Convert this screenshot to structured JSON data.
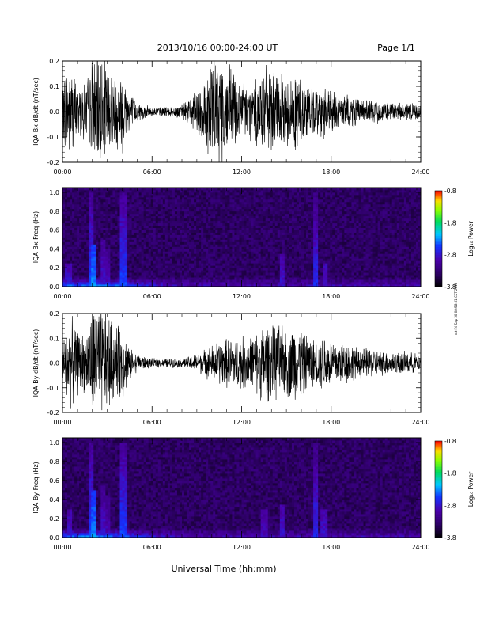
{
  "header": {
    "date_range": "2013/10/16  00:00-24:00 UT",
    "page": "Page 1/1"
  },
  "side_note": "mt Fri Sep 30 08:58:31 CST 2016",
  "chart_data": [
    {
      "type": "line",
      "ylabel": "IQA Bx dB/dt (nT/sec)",
      "x_ticks": [
        "00:00",
        "06:00",
        "12:00",
        "18:00",
        "24:00"
      ],
      "xlim_hours": [
        0,
        24
      ],
      "ylim": [
        -0.2,
        0.2
      ],
      "y_ticks": [
        "0.2",
        "0.1",
        "0.0",
        "-0.1",
        "-0.2"
      ],
      "grid": false,
      "series": [
        {
          "color": "#000000",
          "amplitude_envelope": {
            "hours": [
              0,
              0.3,
              0.6,
              1.0,
              1.6,
              2.0,
              2.4,
              2.9,
              3.5,
              4.0,
              4.5,
              5.0,
              6.0,
              7.0,
              8.0,
              8.5,
              9.0,
              9.5,
              10.0,
              10.5,
              11.0,
              11.5,
              12.0,
              12.5,
              13.0,
              13.5,
              14.0,
              14.5,
              15.0,
              15.5,
              16.0,
              16.5,
              17.0,
              17.5,
              18.0,
              18.5,
              19.0,
              19.5,
              20.0,
              21.0,
              22.0,
              23.0,
              24.0
            ],
            "max_abs_dbdt": [
              0.1,
              0.22,
              0.2,
              0.12,
              0.13,
              0.25,
              0.26,
              0.22,
              0.16,
              0.19,
              0.09,
              0.04,
              0.02,
              0.02,
              0.03,
              0.06,
              0.1,
              0.16,
              0.25,
              0.24,
              0.22,
              0.18,
              0.14,
              0.13,
              0.15,
              0.2,
              0.17,
              0.16,
              0.14,
              0.18,
              0.16,
              0.12,
              0.1,
              0.12,
              0.09,
              0.08,
              0.08,
              0.07,
              0.05,
              0.05,
              0.04,
              0.04,
              0.03
            ]
          }
        }
      ]
    },
    {
      "type": "heatmap",
      "ylabel": "IQA Bx Freq (Hz)",
      "x_ticks": [
        "00:00",
        "06:00",
        "12:00",
        "18:00",
        "24:00"
      ],
      "xlim_hours": [
        0,
        24
      ],
      "ylim": [
        0,
        1.05
      ],
      "y_ticks": [
        "1.0",
        "0.8",
        "0.6",
        "0.4",
        "0.2",
        "0.0"
      ],
      "colorbar": {
        "label": "Log₁₀ Power",
        "range": [
          -3.8,
          -0.8
        ],
        "ticks": [
          "-0.8",
          "-1.8",
          "-2.8",
          "-3.8"
        ]
      },
      "bright_bursts": [
        {
          "hour": 0.4,
          "max_freq": 0.25,
          "level": -2.9
        },
        {
          "hour": 1.9,
          "max_freq": 1.0,
          "level": -2.6
        },
        {
          "hour": 2.1,
          "max_freq": 0.45,
          "level": -2.4
        },
        {
          "hour": 2.7,
          "max_freq": 0.5,
          "level": -2.9
        },
        {
          "hour": 3.0,
          "max_freq": 0.4,
          "level": -3.0
        },
        {
          "hour": 4.1,
          "max_freq": 1.0,
          "level": -2.6
        },
        {
          "hour": 14.7,
          "max_freq": 0.35,
          "level": -2.9
        },
        {
          "hour": 17.0,
          "max_freq": 1.0,
          "level": -2.7
        },
        {
          "hour": 17.6,
          "max_freq": 0.25,
          "level": -2.9
        }
      ],
      "low_freq_peak_hour": 2.0,
      "low_freq_peak_level": -0.8
    },
    {
      "type": "line",
      "ylabel": "IQA By dB/dt (nT/sec)",
      "x_ticks": [
        "00:00",
        "06:00",
        "12:00",
        "18:00",
        "24:00"
      ],
      "xlim_hours": [
        0,
        24
      ],
      "ylim": [
        -0.2,
        0.2
      ],
      "y_ticks": [
        "0.2",
        "0.1",
        "0.0",
        "-0.1",
        "-0.2"
      ],
      "grid": false,
      "series": [
        {
          "color": "#000000",
          "amplitude_envelope": {
            "hours": [
              0,
              0.3,
              0.6,
              1.0,
              1.6,
              2.0,
              2.4,
              2.9,
              3.5,
              4.0,
              4.5,
              5.0,
              6.0,
              7.0,
              8.0,
              8.5,
              9.0,
              9.5,
              10.0,
              10.5,
              11.0,
              11.5,
              12.0,
              12.5,
              13.0,
              13.5,
              14.0,
              14.5,
              15.0,
              15.5,
              16.0,
              16.5,
              17.0,
              17.5,
              18.0,
              18.5,
              19.0,
              19.5,
              20.0,
              21.0,
              22.0,
              23.0,
              24.0
            ],
            "max_abs_dbdt": [
              0.1,
              0.16,
              0.2,
              0.14,
              0.13,
              0.25,
              0.26,
              0.24,
              0.17,
              0.16,
              0.08,
              0.04,
              0.02,
              0.02,
              0.02,
              0.03,
              0.04,
              0.06,
              0.08,
              0.1,
              0.11,
              0.11,
              0.12,
              0.12,
              0.14,
              0.18,
              0.16,
              0.17,
              0.15,
              0.18,
              0.16,
              0.12,
              0.1,
              0.13,
              0.11,
              0.1,
              0.1,
              0.08,
              0.07,
              0.06,
              0.05,
              0.05,
              0.04
            ]
          }
        }
      ]
    },
    {
      "type": "heatmap",
      "ylabel": "IQA By Freq (Hz)",
      "x_ticks": [
        "00:00",
        "06:00",
        "12:00",
        "18:00",
        "24:00"
      ],
      "xlim_hours": [
        0,
        24
      ],
      "ylim": [
        0,
        1.05
      ],
      "y_ticks": [
        "1.0",
        "0.8",
        "0.6",
        "0.4",
        "0.2",
        "0.0"
      ],
      "colorbar": {
        "label": "Log₁₀ Power",
        "range": [
          -3.8,
          -0.8
        ],
        "ticks": [
          "-0.8",
          "-1.8",
          "-2.8",
          "-3.8"
        ]
      },
      "bright_bursts": [
        {
          "hour": 0.5,
          "max_freq": 0.3,
          "level": -2.9
        },
        {
          "hour": 1.9,
          "max_freq": 1.0,
          "level": -2.6
        },
        {
          "hour": 2.1,
          "max_freq": 0.5,
          "level": -2.4
        },
        {
          "hour": 2.7,
          "max_freq": 0.55,
          "level": -2.9
        },
        {
          "hour": 3.0,
          "max_freq": 0.45,
          "level": -3.0
        },
        {
          "hour": 4.1,
          "max_freq": 1.0,
          "level": -2.6
        },
        {
          "hour": 13.5,
          "max_freq": 0.3,
          "level": -3.0
        },
        {
          "hour": 14.7,
          "max_freq": 0.35,
          "level": -2.9
        },
        {
          "hour": 17.0,
          "max_freq": 1.0,
          "level": -2.7
        },
        {
          "hour": 17.5,
          "max_freq": 0.3,
          "level": -2.9
        }
      ],
      "low_freq_peak_hour": 2.0,
      "low_freq_peak_level": -0.8
    }
  ],
  "x_axis": {
    "label": "Universal Time (hh:mm)"
  }
}
